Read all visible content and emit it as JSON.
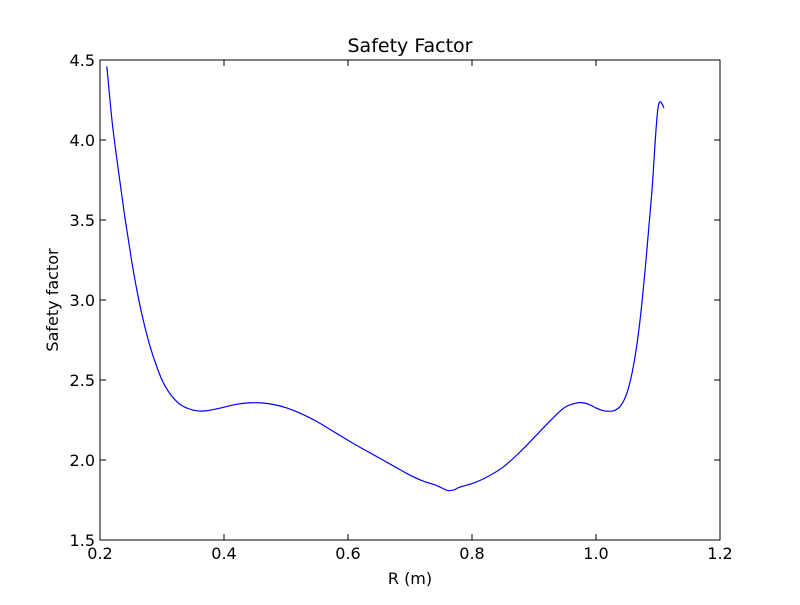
{
  "chart_data": {
    "type": "line",
    "title": "Safety Factor",
    "xlabel": "R (m)",
    "ylabel": "Safety factor",
    "xlim": [
      0.2,
      1.2
    ],
    "ylim": [
      1.5,
      4.5
    ],
    "xticks": [
      0.2,
      0.4,
      0.6,
      0.8,
      1.0,
      1.2
    ],
    "xtick_labels": [
      "0.2",
      "0.4",
      "0.6",
      "0.8",
      "1.0",
      "1.2"
    ],
    "yticks": [
      1.5,
      2.0,
      2.5,
      3.0,
      3.5,
      4.0,
      4.5
    ],
    "ytick_labels": [
      "1.5",
      "2.0",
      "2.5",
      "3.0",
      "3.5",
      "4.0",
      "4.5"
    ],
    "grid": false,
    "series": [
      {
        "color": "#0000ff",
        "x": [
          0.211,
          0.22,
          0.23,
          0.24,
          0.25,
          0.26,
          0.27,
          0.28,
          0.29,
          0.3,
          0.31,
          0.32,
          0.33,
          0.34,
          0.35,
          0.36,
          0.37,
          0.38,
          0.4,
          0.42,
          0.44,
          0.46,
          0.48,
          0.5,
          0.52,
          0.55,
          0.58,
          0.61,
          0.64,
          0.67,
          0.7,
          0.72,
          0.74,
          0.75,
          0.76,
          0.77,
          0.78,
          0.8,
          0.82,
          0.85,
          0.88,
          0.91,
          0.93,
          0.95,
          0.97,
          0.98,
          0.99,
          1.0,
          1.01,
          1.02,
          1.03,
          1.04,
          1.05,
          1.06,
          1.07,
          1.08,
          1.09,
          1.1,
          1.11
        ],
        "y": [
          4.46,
          4.1,
          3.8,
          3.52,
          3.27,
          3.05,
          2.87,
          2.72,
          2.6,
          2.5,
          2.43,
          2.38,
          2.345,
          2.325,
          2.312,
          2.306,
          2.307,
          2.313,
          2.33,
          2.348,
          2.357,
          2.357,
          2.347,
          2.327,
          2.297,
          2.24,
          2.17,
          2.1,
          2.035,
          1.97,
          1.905,
          1.87,
          1.845,
          1.828,
          1.81,
          1.812,
          1.83,
          1.853,
          1.885,
          1.955,
          2.06,
          2.18,
          2.26,
          2.33,
          2.357,
          2.357,
          2.345,
          2.325,
          2.31,
          2.305,
          2.31,
          2.34,
          2.42,
          2.58,
          2.84,
          3.22,
          3.67,
          4.2,
          4.2
        ]
      }
    ]
  }
}
